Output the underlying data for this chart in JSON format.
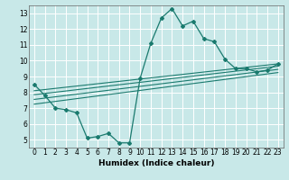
{
  "title": "",
  "xlabel": "Humidex (Indice chaleur)",
  "ylabel": "",
  "bg_color": "#c8e8e8",
  "line_color": "#1a7a6e",
  "grid_color": "#ffffff",
  "grid_minor_color": "#e0f0f0",
  "xlim": [
    -0.5,
    23.5
  ],
  "ylim": [
    4.5,
    13.5
  ],
  "xticks": [
    0,
    1,
    2,
    3,
    4,
    5,
    6,
    7,
    8,
    9,
    10,
    11,
    12,
    13,
    14,
    15,
    16,
    17,
    18,
    19,
    20,
    21,
    22,
    23
  ],
  "yticks": [
    5,
    6,
    7,
    8,
    9,
    10,
    11,
    12,
    13
  ],
  "series": [
    [
      0,
      8.5
    ],
    [
      1,
      7.8
    ],
    [
      2,
      7.0
    ],
    [
      3,
      6.9
    ],
    [
      4,
      6.7
    ],
    [
      5,
      5.1
    ],
    [
      6,
      5.2
    ],
    [
      7,
      5.4
    ],
    [
      8,
      4.8
    ],
    [
      9,
      4.8
    ],
    [
      10,
      8.9
    ],
    [
      11,
      11.1
    ],
    [
      12,
      12.7
    ],
    [
      13,
      13.3
    ],
    [
      14,
      12.2
    ],
    [
      15,
      12.5
    ],
    [
      16,
      11.4
    ],
    [
      17,
      11.2
    ],
    [
      18,
      10.1
    ],
    [
      19,
      9.5
    ],
    [
      20,
      9.5
    ],
    [
      21,
      9.3
    ],
    [
      22,
      9.4
    ],
    [
      23,
      9.8
    ]
  ],
  "band_lines": [
    [
      [
        0,
        23
      ],
      [
        8.1,
        9.8
      ]
    ],
    [
      [
        0,
        23
      ],
      [
        7.85,
        9.65
      ]
    ],
    [
      [
        0,
        23
      ],
      [
        7.55,
        9.45
      ]
    ],
    [
      [
        0,
        23
      ],
      [
        7.25,
        9.25
      ]
    ]
  ],
  "tick_fontsize": 5.5,
  "xlabel_fontsize": 6.5
}
